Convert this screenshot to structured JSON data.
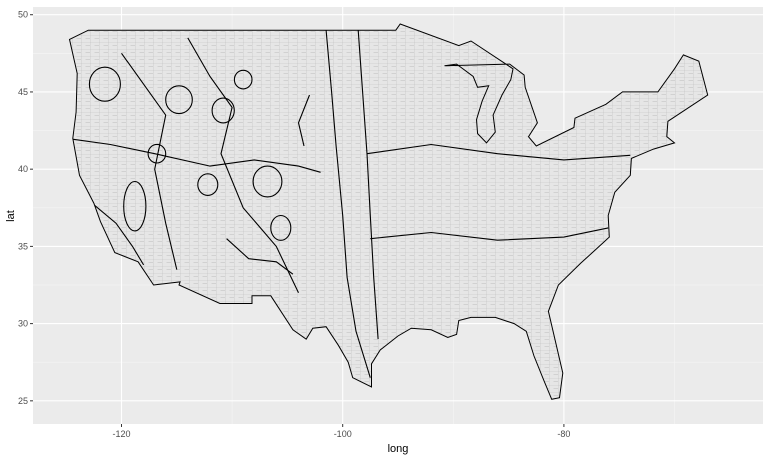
{
  "chart_data": {
    "type": "map",
    "xlabel": "long",
    "ylabel": "lat",
    "xlim": [
      -128,
      -62
    ],
    "ylim": [
      23.5,
      50.5
    ],
    "x_ticks": [
      -120,
      -100,
      -80
    ],
    "y_ticks": [
      25,
      30,
      35,
      40,
      45,
      50
    ],
    "x_tick_labels": [
      "-120",
      "-100",
      "-80"
    ],
    "y_tick_labels": [
      "25",
      "30",
      "35",
      "40",
      "45",
      "50"
    ],
    "grid": true,
    "panel_background": "#ebebeb",
    "land_fill": "#e6e6e6",
    "county_border_color": "#bdbdbd",
    "region_border_color": "#000000",
    "outline": [
      [
        -124.7,
        48.4
      ],
      [
        -123.0,
        49.0
      ],
      [
        -95.2,
        49.0
      ],
      [
        -94.8,
        49.4
      ],
      [
        -89.5,
        48.0
      ],
      [
        -88.4,
        48.3
      ],
      [
        -84.6,
        46.5
      ],
      [
        -84.8,
        45.8
      ],
      [
        -85.6,
        44.8
      ],
      [
        -86.4,
        43.5
      ],
      [
        -86.2,
        42.4
      ],
      [
        -87.0,
        41.7
      ],
      [
        -87.8,
        42.3
      ],
      [
        -87.9,
        43.2
      ],
      [
        -87.4,
        44.4
      ],
      [
        -86.8,
        45.4
      ],
      [
        -87.8,
        45.3
      ],
      [
        -88.2,
        46.0
      ],
      [
        -89.7,
        46.8
      ],
      [
        -90.8,
        46.7
      ],
      [
        -84.9,
        46.8
      ],
      [
        -83.6,
        46.1
      ],
      [
        -83.5,
        45.3
      ],
      [
        -82.4,
        43.0
      ],
      [
        -83.2,
        42.1
      ],
      [
        -82.5,
        41.5
      ],
      [
        -79.1,
        42.7
      ],
      [
        -79.0,
        43.3
      ],
      [
        -76.2,
        44.2
      ],
      [
        -74.7,
        45.0
      ],
      [
        -71.5,
        45.0
      ],
      [
        -70.0,
        46.5
      ],
      [
        -69.2,
        47.4
      ],
      [
        -67.8,
        47.0
      ],
      [
        -67.0,
        44.8
      ],
      [
        -70.6,
        43.1
      ],
      [
        -70.7,
        42.1
      ],
      [
        -70.0,
        41.7
      ],
      [
        -71.9,
        41.3
      ],
      [
        -73.9,
        40.7
      ],
      [
        -74.0,
        39.6
      ],
      [
        -75.4,
        38.5
      ],
      [
        -76.0,
        37.0
      ],
      [
        -75.9,
        35.6
      ],
      [
        -76.5,
        35.2
      ],
      [
        -78.5,
        33.9
      ],
      [
        -80.5,
        32.5
      ],
      [
        -81.4,
        30.8
      ],
      [
        -80.1,
        26.8
      ],
      [
        -80.4,
        25.2
      ],
      [
        -81.1,
        25.1
      ],
      [
        -81.8,
        26.3
      ],
      [
        -82.7,
        27.9
      ],
      [
        -83.4,
        29.5
      ],
      [
        -84.5,
        30.0
      ],
      [
        -86.2,
        30.4
      ],
      [
        -88.4,
        30.4
      ],
      [
        -89.5,
        30.2
      ],
      [
        -89.7,
        29.3
      ],
      [
        -90.5,
        29.1
      ],
      [
        -92.0,
        29.6
      ],
      [
        -93.8,
        29.7
      ],
      [
        -95.0,
        29.2
      ],
      [
        -96.6,
        28.3
      ],
      [
        -97.4,
        27.4
      ],
      [
        -97.4,
        25.9
      ],
      [
        -99.1,
        26.5
      ],
      [
        -99.5,
        27.5
      ],
      [
        -100.4,
        28.6
      ],
      [
        -101.5,
        29.8
      ],
      [
        -102.7,
        29.7
      ],
      [
        -103.3,
        29.0
      ],
      [
        -104.5,
        29.6
      ],
      [
        -106.5,
        31.8
      ],
      [
        -108.2,
        31.8
      ],
      [
        -108.2,
        31.3
      ],
      [
        -111.1,
        31.3
      ],
      [
        -114.8,
        32.5
      ],
      [
        -114.7,
        32.7
      ],
      [
        -117.1,
        32.5
      ],
      [
        -118.5,
        34.0
      ],
      [
        -120.6,
        34.6
      ],
      [
        -121.9,
        36.6
      ],
      [
        -122.5,
        37.8
      ],
      [
        -123.8,
        39.6
      ],
      [
        -124.4,
        42.0
      ],
      [
        -124.1,
        43.7
      ],
      [
        -124.0,
        46.2
      ],
      [
        -124.7,
        48.4
      ]
    ]
  }
}
